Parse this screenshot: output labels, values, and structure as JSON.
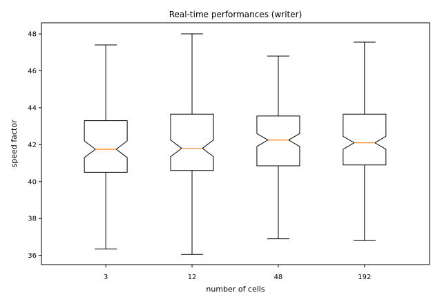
{
  "chart_data": {
    "type": "box",
    "title": "Real-time performances (writer)",
    "xlabel": "number of cells",
    "ylabel": "speed factor",
    "ylim": [
      35.5,
      48.6
    ],
    "yticks": [
      36,
      38,
      40,
      42,
      44,
      46,
      48
    ],
    "notched": true,
    "grid": false,
    "median_color": "#ff7f0e",
    "box_color": "#000000",
    "categories": [
      "3",
      "12",
      "48",
      "192"
    ],
    "boxes": [
      {
        "category": "3",
        "whisker_low": 36.35,
        "q1": 40.5,
        "median": 41.75,
        "q3": 43.3,
        "whisker_high": 47.4,
        "notch_low": 41.3,
        "notch_high": 42.2
      },
      {
        "category": "12",
        "whisker_low": 36.05,
        "q1": 40.6,
        "median": 41.8,
        "q3": 43.65,
        "whisker_high": 48.0,
        "notch_low": 41.35,
        "notch_high": 42.25
      },
      {
        "category": "48",
        "whisker_low": 36.9,
        "q1": 40.85,
        "median": 42.25,
        "q3": 43.55,
        "whisker_high": 46.8,
        "notch_low": 41.9,
        "notch_high": 42.6
      },
      {
        "category": "192",
        "whisker_low": 36.8,
        "q1": 40.9,
        "median": 42.1,
        "q3": 43.65,
        "whisker_high": 47.55,
        "notch_low": 41.75,
        "notch_high": 42.45
      }
    ]
  }
}
